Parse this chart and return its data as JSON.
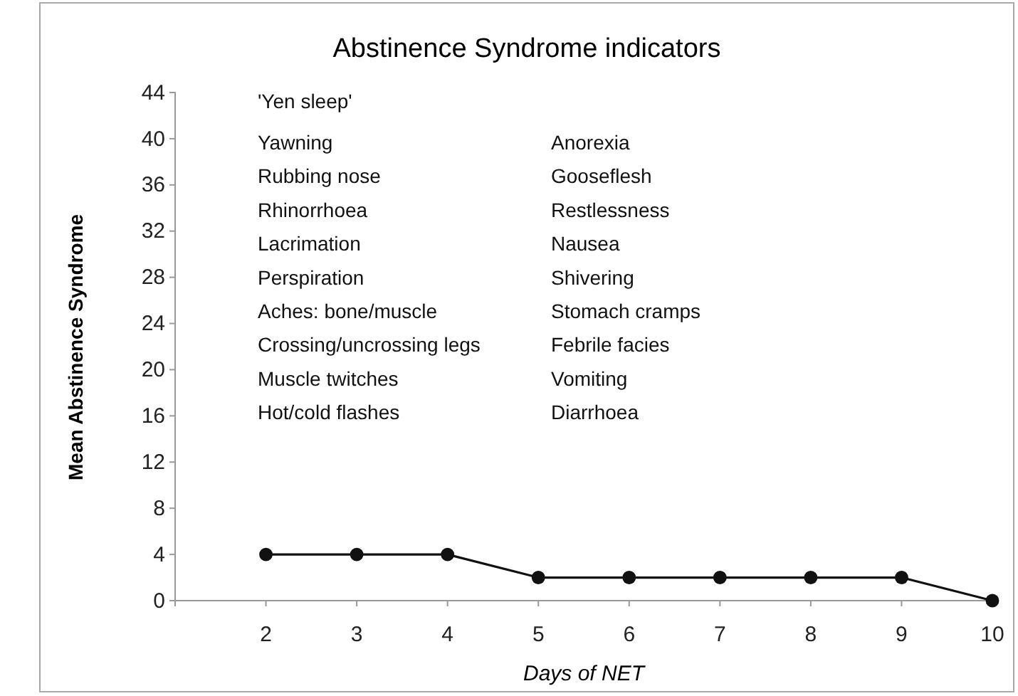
{
  "chart_data": {
    "type": "line",
    "title": "Abstinence Syndrome indicators",
    "xlabel": "Days of NET",
    "ylabel": "Mean Abstinence Syndrome",
    "x": [
      2,
      3,
      4,
      5,
      6,
      7,
      8,
      9,
      10
    ],
    "series": [
      {
        "color": "#111111",
        "values": [
          4,
          4,
          4,
          2,
          2,
          2,
          2,
          2,
          0
        ]
      }
    ],
    "xlim": [
      1,
      10
    ],
    "xticks": [
      2,
      3,
      4,
      5,
      6,
      7,
      8,
      9,
      10
    ],
    "ylim": [
      0,
      44
    ],
    "yticks": [
      0,
      4,
      8,
      12,
      16,
      20,
      24,
      28,
      32,
      36,
      40,
      44
    ],
    "marker": "circle",
    "line_style": "solid",
    "grid": false,
    "annotations": [
      "'Yen sleep'",
      "Yawning",
      "Rubbing nose",
      "Rhinorrhoea",
      "Lacrimation",
      "Perspiration",
      "Aches: bone/muscle",
      "Crossing/uncrossing legs",
      "Muscle twitches",
      "Hot/cold flashes",
      "Anorexia",
      "Gooseflesh",
      "Restlessness",
      "Nausea",
      "Shivering",
      "Stomach cramps",
      "Febrile facies",
      "Vomiting",
      "Diarrhoea"
    ]
  }
}
